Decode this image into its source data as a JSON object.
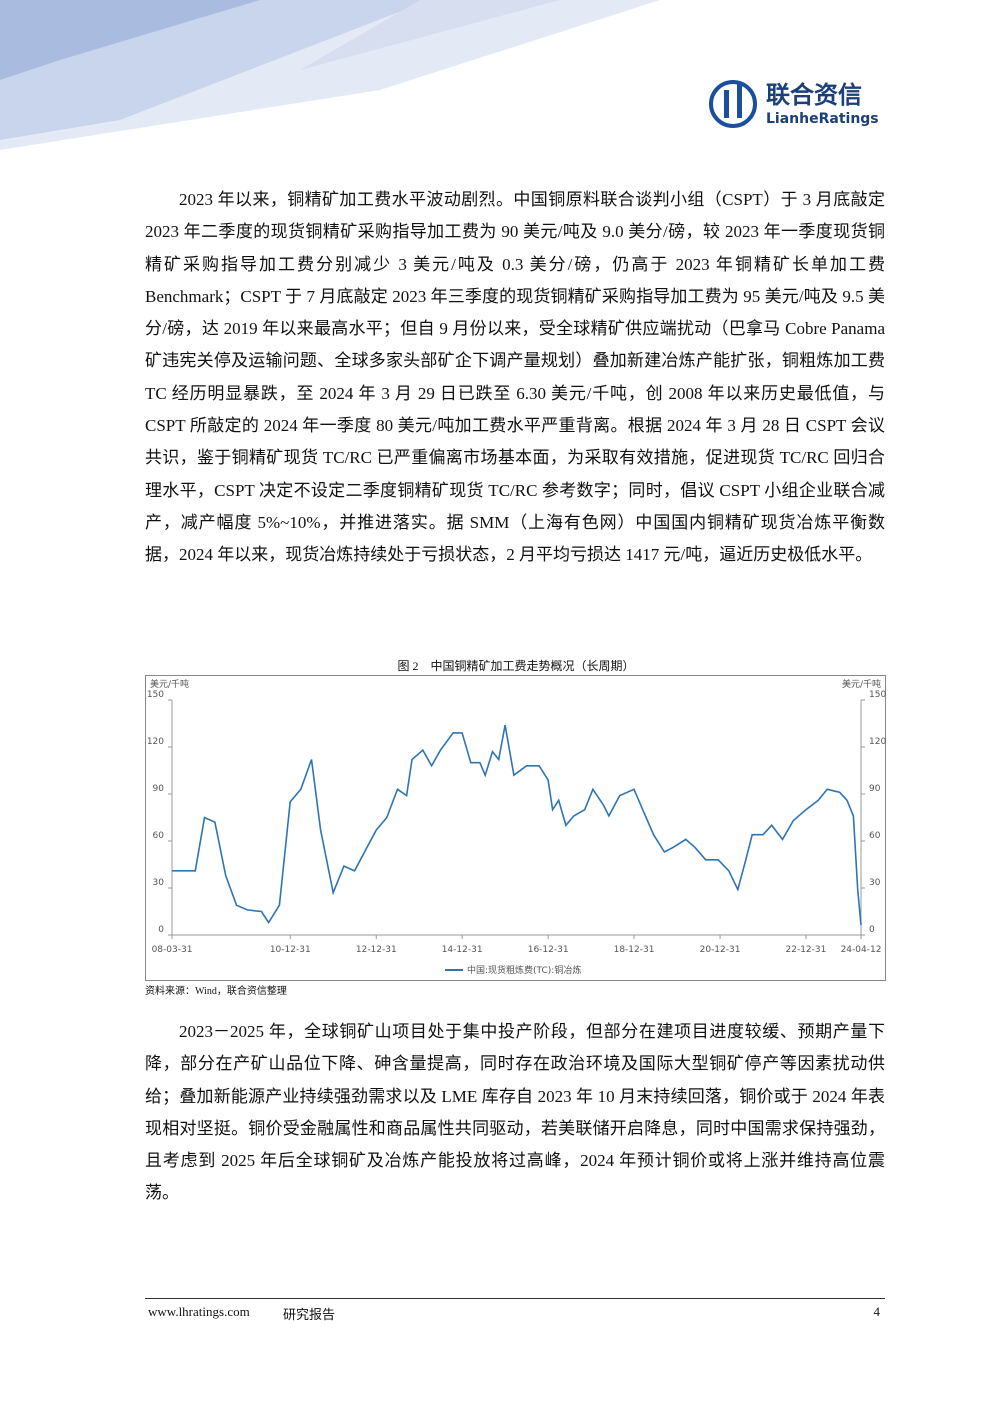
{
  "header": {
    "logo_cn": "联合资信",
    "logo_en": "LianheRatings"
  },
  "paragraphs": [
    "2023 年以来，铜精矿加工费水平波动剧烈。中国铜原料联合谈判小组（CSPT）于 3 月底敲定 2023 年二季度的现货铜精矿采购指导加工费为 90 美元/吨及 9.0 美分/磅，较 2023 年一季度现货铜精矿采购指导加工费分别减少 3 美元/吨及 0.3 美分/磅，仍高于 2023 年铜精矿长单加工费 Benchmark；CSPT 于 7 月底敲定 2023 年三季度的现货铜精矿采购指导加工费为 95 美元/吨及 9.5 美分/磅，达 2019 年以来最高水平；但自 9 月份以来，受全球精矿供应端扰动（巴拿马 Cobre Panama 矿违宪关停及运输问题、全球多家头部矿企下调产量规划）叠加新建冶炼产能扩张，铜粗炼加工费 TC 经历明显暴跌，至 2024 年 3 月 29 日已跌至 6.30 美元/千吨，创 2008 年以来历史最低值，与 CSPT 所敲定的 2024 年一季度 80 美元/吨加工费水平严重背离。根据 2024 年 3 月 28 日 CSPT 会议共识，鉴于铜精矿现货 TC/RC 已严重偏离市场基本面，为采取有效措施，促进现货 TC/RC 回归合理水平，CSPT 决定不设定二季度铜精矿现货 TC/RC 参考数字；同时，倡议 CSPT 小组企业联合减产，减产幅度 5%~10%，并推进落实。据 SMM（上海有色网）中国国内铜精矿现货冶炼平衡数据，2024 年以来，现货冶炼持续处于亏损状态，2 月平均亏损达 1417 元/吨，逼近历史极低水平。",
    "2023－2025 年，全球铜矿山项目处于集中投产阶段，但部分在建项目进度较缓、预期产量下降，部分在产矿山品位下降、砷含量提高，同时存在政治环境及国际大型铜矿停产等因素扰动供给；叠加新能源产业持续强劲需求以及 LME 库存自 2023 年 10 月末持续回落，铜价或于 2024 年表现相对坚挺。铜价受金融属性和商品属性共同驱动，若美联储开启降息，同时中国需求保持强劲，且考虑到 2025 年后全球铜矿及冶炼产能投放将过高峰，2024 年预计铜价或将上涨并维持高位震荡。"
  ],
  "figure": {
    "caption": "图 2　中国铜精矿加工费走势概况（长周期）",
    "source": "资料来源：Wind，联合资信整理"
  },
  "chart_data": {
    "type": "line",
    "ylabel": "美元/千吨",
    "y2label": "美元/千吨",
    "x": [
      "08-03-31",
      "08-10-15",
      "09-01-01",
      "09-03-31",
      "09-06-30",
      "09-09-30",
      "09-12-31",
      "10-04-30",
      "10-06-30",
      "10-09-30",
      "10-12-31",
      "11-03-31",
      "11-06-30",
      "11-09-15",
      "11-12-31",
      "12-03-31",
      "12-06-30",
      "12-09-30",
      "12-12-31",
      "13-03-31",
      "13-06-30",
      "13-09-15",
      "13-10-31",
      "14-01-31",
      "14-04-15",
      "14-06-30",
      "14-10-15",
      "14-12-31",
      "15-03-15",
      "15-05-31",
      "15-07-15",
      "15-09-15",
      "15-11-07",
      "15-12-31",
      "16-03-15",
      "16-06-30",
      "16-10-15",
      "16-12-31",
      "17-02-07",
      "17-03-31",
      "17-05-31",
      "17-08-07",
      "17-11-07",
      "18-01-15",
      "18-04-15",
      "18-05-31",
      "18-08-31",
      "18-12-31",
      "19-03-15",
      "19-06-15",
      "19-09-15",
      "19-11-30",
      "20-03-15",
      "20-05-31",
      "20-08-31",
      "20-12-15",
      "21-03-15",
      "21-05-31",
      "21-08-07",
      "21-09-30",
      "21-12-31",
      "22-03-15",
      "22-06-15",
      "22-09-15",
      "22-12-31",
      "23-04-15",
      "23-06-30",
      "23-10-15",
      "23-12-15",
      "24-02-07",
      "24-03-15",
      "24-03-31",
      "24-04-12"
    ],
    "series": [
      {
        "name": "中国:现货粗炼费(TC):铜冶炼",
        "color": "#2e75b6",
        "values": [
          41,
          41,
          75,
          72,
          38,
          19,
          16,
          15,
          8,
          19,
          85,
          93,
          112,
          67,
          27,
          44,
          41,
          54,
          67,
          75,
          93,
          89,
          112,
          118,
          108,
          118,
          129,
          129,
          110,
          110,
          102,
          117,
          112,
          134,
          102,
          108,
          108,
          99,
          80,
          86,
          70,
          76,
          80,
          93,
          83,
          76,
          89,
          93,
          80,
          64,
          53,
          56,
          61,
          56,
          48,
          48,
          41,
          29,
          48,
          64,
          64,
          70,
          61,
          73,
          80,
          86,
          93,
          91,
          86,
          76,
          29,
          16,
          6.3
        ]
      }
    ],
    "xlim": [
      "08-03-31",
      "24-04-12"
    ],
    "xticks": [
      "08-03-31",
      "10-12-31",
      "12-12-31",
      "14-12-31",
      "16-12-31",
      "18-12-31",
      "20-12-31",
      "22-12-31",
      "24-04-12"
    ],
    "ylim": [
      0,
      150
    ],
    "yticks": [
      0,
      30,
      60,
      90,
      120,
      150
    ],
    "y2lim": [
      0,
      150
    ],
    "y2ticks": [
      0,
      30,
      60,
      90,
      120,
      150
    ],
    "grid": false,
    "legend": "bottom"
  },
  "footer": {
    "site": "www.lhratings.com",
    "label": "研究报告",
    "page": "4"
  }
}
